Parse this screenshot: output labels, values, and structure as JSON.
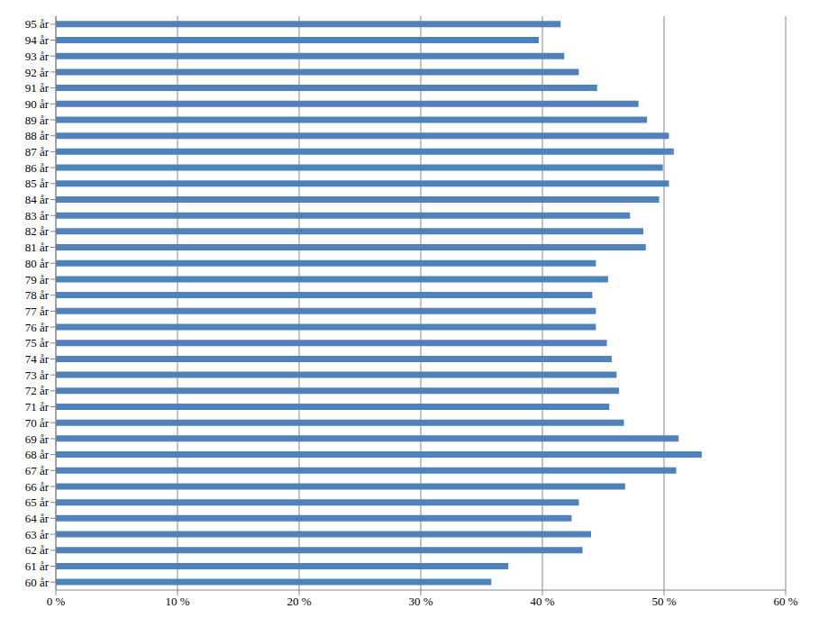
{
  "chart_data": {
    "type": "bar",
    "orientation": "horizontal",
    "categories": [
      "60 år",
      "61 år",
      "62 år",
      "63 år",
      "64 år",
      "65 år",
      "66 år",
      "67 år",
      "68 år",
      "69 år",
      "70 år",
      "71 år",
      "72 år",
      "73 år",
      "74 år",
      "75 år",
      "76 år",
      "77 år",
      "78 år",
      "79 år",
      "80 år",
      "81 år",
      "82 år",
      "83 år",
      "84 år",
      "85 år",
      "86 år",
      "87 år",
      "88 år",
      "89 år",
      "90 år",
      "91 år",
      "92 år",
      "93 år",
      "94 år",
      "95 år"
    ],
    "values": [
      35.8,
      37.2,
      43.3,
      44.0,
      42.4,
      43.0,
      46.8,
      51.0,
      53.1,
      51.2,
      46.7,
      45.5,
      46.3,
      46.1,
      45.7,
      45.3,
      44.4,
      44.4,
      44.1,
      45.4,
      44.4,
      48.5,
      48.3,
      47.2,
      49.6,
      50.4,
      49.9,
      50.8,
      50.4,
      48.6,
      47.9,
      44.5,
      43.0,
      41.8,
      39.7,
      41.5
    ],
    "color": "#4f81bd",
    "xlim": [
      0,
      60
    ],
    "xticks": [
      {
        "value": 0,
        "label": "0 %"
      },
      {
        "value": 10,
        "label": "10 %"
      },
      {
        "value": 20,
        "label": "20 %"
      },
      {
        "value": 30,
        "label": "30 %"
      },
      {
        "value": 40,
        "label": "40 %"
      },
      {
        "value": 50,
        "label": "50 %"
      },
      {
        "value": 60,
        "label": "60 %"
      }
    ],
    "grid": true
  }
}
